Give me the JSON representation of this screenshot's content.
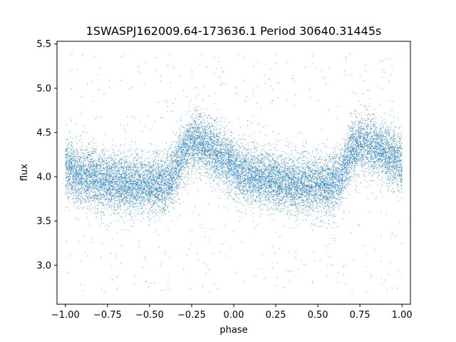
{
  "chart_data": {
    "type": "scatter",
    "title": "1SWASPJ162009.64-173636.1 Period 30640.31445s",
    "xlabel": "phase",
    "ylabel": "flux",
    "xlim": [
      -1.05,
      1.05
    ],
    "ylim": [
      2.56,
      5.53
    ],
    "xticks": [
      -1.0,
      -0.75,
      -0.5,
      -0.25,
      0.0,
      0.25,
      0.5,
      0.75,
      1.0
    ],
    "xtick_labels": [
      "−1.00",
      "−0.75",
      "−0.50",
      "−0.25",
      "0.00",
      "0.25",
      "0.50",
      "0.75",
      "1.00"
    ],
    "yticks": [
      3.0,
      3.5,
      4.0,
      4.5,
      5.0,
      5.5
    ],
    "ytick_labels": [
      "3.0",
      "3.5",
      "4.0",
      "4.5",
      "5.0",
      "5.5"
    ],
    "grid": false,
    "point_color": "#1f77b4",
    "series": [
      {
        "phase_range": [
          -1.0,
          1.0
        ],
        "profile_phase": [
          0.0,
          0.1,
          0.2,
          0.3,
          0.4,
          0.5,
          0.6,
          0.65,
          0.7,
          0.75,
          0.8,
          0.85,
          0.9,
          1.0
        ],
        "profile_flux": [
          4.1,
          4.0,
          3.97,
          3.94,
          3.91,
          3.9,
          3.92,
          4.05,
          4.3,
          4.38,
          4.38,
          4.33,
          4.26,
          4.15
        ],
        "scatter_sigma": 0.16,
        "outlier_range": [
          2.7,
          5.4
        ],
        "n_points": 16000
      }
    ]
  }
}
